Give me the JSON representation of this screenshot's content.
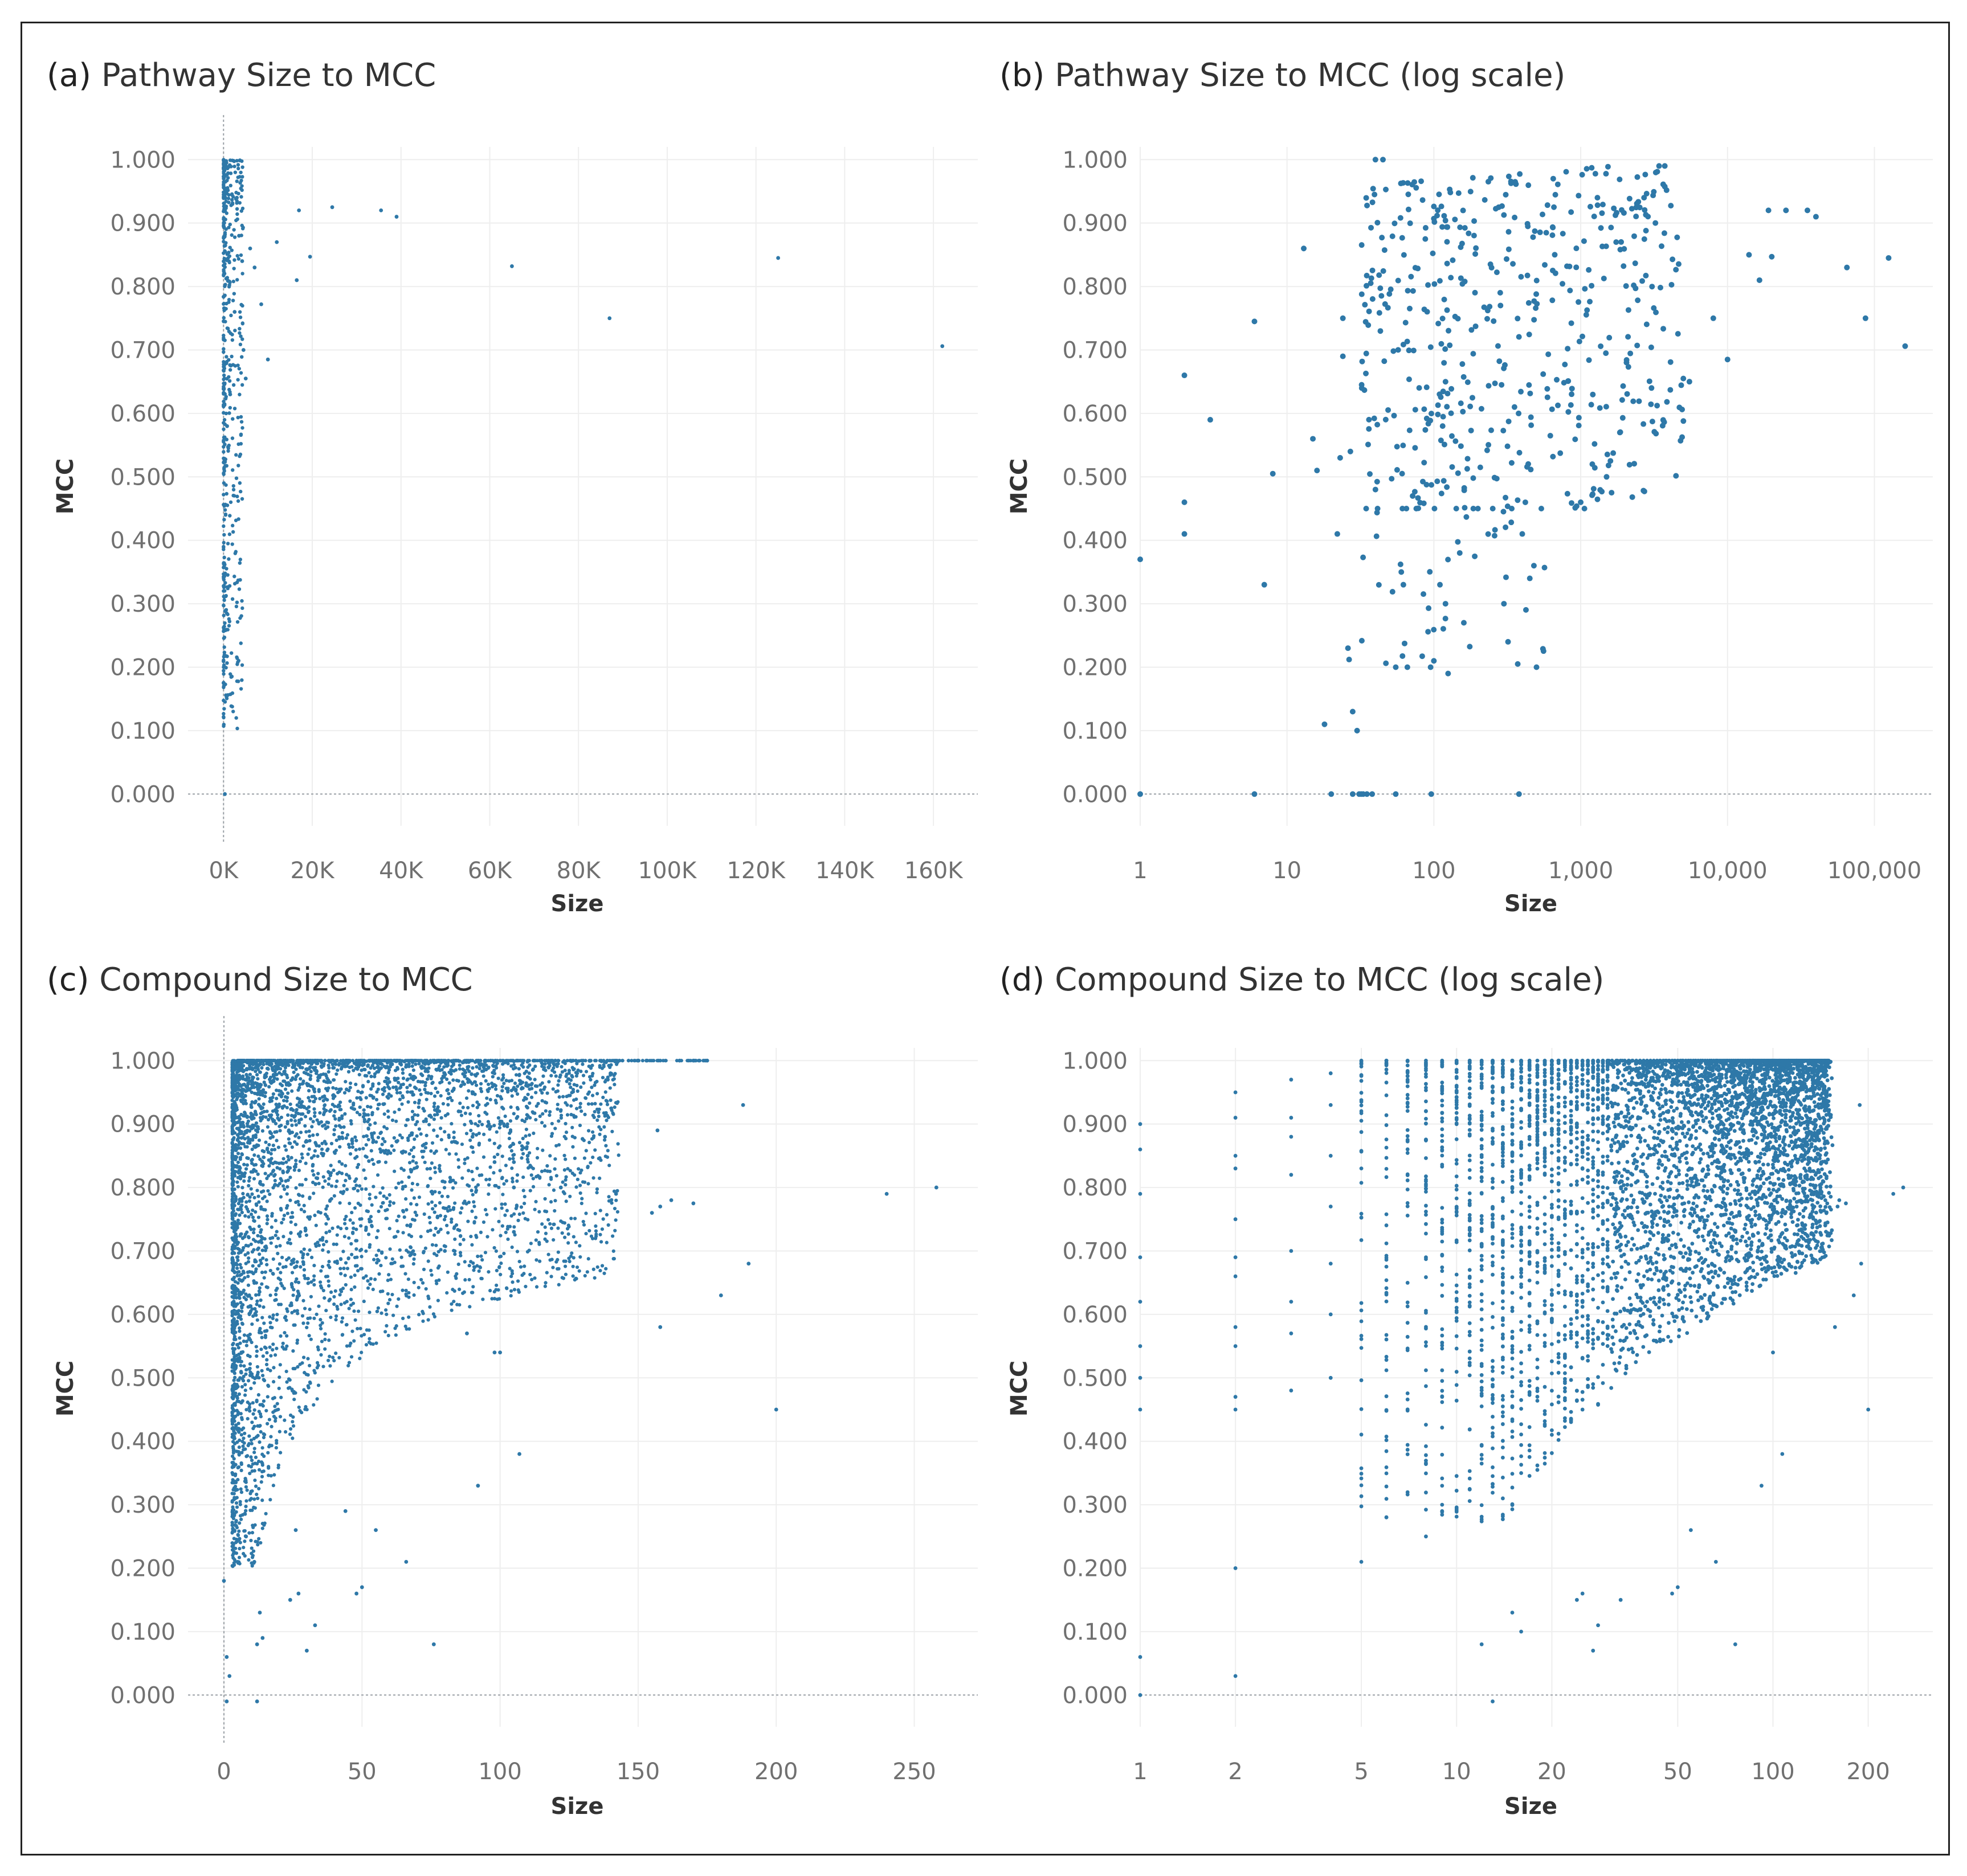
{
  "colors": {
    "point": "#2e78a8",
    "grid": "#eeeeee",
    "zero_line": "#9aa0a6",
    "tick_text": "#707070"
  },
  "chart_data": [
    {
      "id": "a",
      "type": "scatter",
      "tag": "(a)",
      "title": "Pathway Size to MCC",
      "xlabel": "Size",
      "ylabel": "MCC",
      "xscale": "linear",
      "xlim": [
        -8000,
        170000
      ],
      "ylim": [
        -0.05,
        1.02
      ],
      "xticks": [
        0,
        20000,
        40000,
        60000,
        80000,
        100000,
        120000,
        140000,
        160000
      ],
      "xticklabels": [
        "0K",
        "20K",
        "40K",
        "60K",
        "80K",
        "100K",
        "120K",
        "140K",
        "160K"
      ],
      "yticks": [
        0,
        0.1,
        0.2,
        0.3,
        0.4,
        0.5,
        0.6,
        0.7,
        0.8,
        0.9,
        1.0
      ],
      "yticklabels": [
        "0.000",
        "0.100",
        "0.200",
        "0.300",
        "0.400",
        "0.500",
        "0.600",
        "0.700",
        "0.800",
        "0.900",
        "1.000"
      ],
      "points": [
        [
          17000,
          0.92
        ],
        [
          24500,
          0.925
        ],
        [
          35500,
          0.92
        ],
        [
          39000,
          0.91
        ],
        [
          19500,
          0.847
        ],
        [
          16500,
          0.81
        ],
        [
          8500,
          0.772
        ],
        [
          10000,
          0.685
        ],
        [
          5000,
          0.655
        ],
        [
          65000,
          0.832
        ],
        [
          125000,
          0.845
        ],
        [
          87000,
          0.75
        ],
        [
          162000,
          0.706
        ],
        [
          4200,
          0.84
        ],
        [
          6000,
          0.86
        ],
        [
          3000,
          0.94
        ],
        [
          2000,
          0.93
        ],
        [
          3500,
          0.88
        ],
        [
          7000,
          0.83
        ],
        [
          12000,
          0.87
        ],
        [
          2500,
          0.76
        ],
        [
          4500,
          0.7
        ],
        [
          1500,
          0.63
        ],
        [
          800,
          0.58
        ],
        [
          300,
          0.0
        ]
      ]
    },
    {
      "id": "b",
      "type": "scatter",
      "tag": "(b)",
      "title": "Pathway Size to MCC (log scale)",
      "xlabel": "Size",
      "ylabel": "MCC",
      "xscale": "log",
      "xlim": [
        1,
        250000
      ],
      "ylim": [
        -0.05,
        1.02
      ],
      "xticks": [
        1,
        10,
        100,
        1000,
        10000,
        100000
      ],
      "xticklabels": [
        "1",
        "10",
        "100",
        "1,000",
        "10,000",
        "100,000"
      ],
      "yticks": [
        0,
        0.1,
        0.2,
        0.3,
        0.4,
        0.5,
        0.6,
        0.7,
        0.8,
        0.9,
        1.0
      ],
      "yticklabels": [
        "0.000",
        "0.100",
        "0.200",
        "0.300",
        "0.400",
        "0.500",
        "0.600",
        "0.700",
        "0.800",
        "0.900",
        "1.000"
      ],
      "points": [
        [
          1,
          0.37
        ],
        [
          1,
          0.0
        ],
        [
          2,
          0.66
        ],
        [
          2,
          0.46
        ],
        [
          2,
          0.41
        ],
        [
          3,
          0.59
        ],
        [
          6,
          0.745
        ],
        [
          6,
          0.0
        ],
        [
          7,
          0.33
        ],
        [
          8,
          0.505
        ],
        [
          13,
          0.86
        ],
        [
          15,
          0.56
        ],
        [
          16,
          0.51
        ],
        [
          18,
          0.11
        ],
        [
          20,
          0.0
        ],
        [
          22,
          0.41
        ],
        [
          23,
          0.53
        ],
        [
          24,
          0.75
        ],
        [
          24,
          0.69
        ],
        [
          26,
          0.23
        ],
        [
          27,
          0.54
        ],
        [
          28,
          0.0
        ],
        [
          28,
          0.13
        ],
        [
          30,
          0.1
        ],
        [
          31,
          0.0
        ],
        [
          32,
          0.0
        ],
        [
          33,
          0.0
        ],
        [
          35,
          0.0
        ],
        [
          38,
          0.0
        ],
        [
          40,
          0.48
        ],
        [
          40,
          1.0
        ],
        [
          45,
          1.0
        ],
        [
          55,
          0.2
        ],
        [
          55,
          0.0
        ],
        [
          60,
          0.35
        ],
        [
          62,
          0.33
        ],
        [
          66,
          0.2
        ],
        [
          95,
          0.2
        ],
        [
          96,
          0.0
        ],
        [
          100,
          0.21
        ],
        [
          110,
          0.33
        ],
        [
          120,
          0.3
        ],
        [
          125,
          0.19
        ],
        [
          150,
          0.38
        ],
        [
          160,
          0.27
        ],
        [
          300,
          0.3
        ],
        [
          320,
          0.24
        ],
        [
          380,
          0.0
        ],
        [
          400,
          0.41
        ],
        [
          450,
          0.34
        ],
        [
          480,
          0.36
        ],
        [
          500,
          0.2
        ],
        [
          1000,
          0.46
        ],
        [
          1200,
          0.52
        ],
        [
          1500,
          0.5
        ],
        [
          650,
          0.97
        ],
        [
          1300,
          0.94
        ],
        [
          2700,
          0.94
        ],
        [
          19000,
          0.92
        ],
        [
          25000,
          0.92
        ],
        [
          35000,
          0.92
        ],
        [
          40000,
          0.91
        ],
        [
          65000,
          0.83
        ],
        [
          125000,
          0.845
        ],
        [
          87000,
          0.75
        ],
        [
          162000,
          0.706
        ],
        [
          20000,
          0.847
        ],
        [
          16500,
          0.81
        ],
        [
          10000,
          0.685
        ],
        [
          5000,
          0.655
        ],
        [
          5500,
          0.65
        ],
        [
          14000,
          0.85
        ],
        [
          8000,
          0.75
        ]
      ]
    },
    {
      "id": "c",
      "type": "scatter",
      "tag": "(c)",
      "title": "Compound Size to MCC",
      "xlabel": "Size",
      "ylabel": "MCC",
      "xscale": "linear",
      "xlim": [
        -13,
        273
      ],
      "ylim": [
        -0.05,
        1.02
      ],
      "xticks": [
        0,
        50,
        100,
        150,
        200,
        250
      ],
      "xticklabels": [
        "0",
        "50",
        "100",
        "150",
        "200",
        "250"
      ],
      "yticks": [
        0,
        0.1,
        0.2,
        0.3,
        0.4,
        0.5,
        0.6,
        0.7,
        0.8,
        0.9,
        1.0
      ],
      "yticklabels": [
        "0.000",
        "0.100",
        "0.200",
        "0.300",
        "0.400",
        "0.500",
        "0.600",
        "0.700",
        "0.800",
        "0.900",
        "1.000"
      ],
      "points": [
        [
          240,
          0.79
        ],
        [
          258,
          0.8
        ],
        [
          200,
          0.45
        ],
        [
          190,
          0.68
        ],
        [
          188,
          0.93
        ],
        [
          180,
          0.63
        ],
        [
          170,
          0.775
        ],
        [
          162,
          0.78
        ],
        [
          158,
          0.77
        ],
        [
          157,
          0.89
        ],
        [
          158,
          0.58
        ],
        [
          155,
          0.76
        ],
        [
          142,
          0.79
        ],
        [
          138,
          0.88
        ],
        [
          122,
          0.8
        ],
        [
          105,
          0.8
        ],
        [
          105,
          0.73
        ],
        [
          107,
          0.38
        ],
        [
          100,
          0.54
        ],
        [
          98,
          0.54
        ],
        [
          92,
          0.33
        ],
        [
          88,
          0.57
        ],
        [
          76,
          0.08
        ],
        [
          66,
          0.21
        ],
        [
          55,
          0.26
        ],
        [
          50,
          0.17
        ],
        [
          48,
          0.16
        ],
        [
          44,
          0.29
        ],
        [
          33,
          0.11
        ],
        [
          30,
          0.07
        ],
        [
          27,
          0.16
        ],
        [
          26,
          0.26
        ],
        [
          24,
          0.15
        ],
        [
          14,
          0.09
        ],
        [
          13,
          0.13
        ],
        [
          12,
          0.08
        ],
        [
          12,
          -0.01
        ],
        [
          11,
          0.21
        ],
        [
          8,
          0.25
        ],
        [
          5,
          0.21
        ],
        [
          2,
          0.03
        ],
        [
          1,
          0.06
        ],
        [
          1,
          -0.01
        ],
        [
          0,
          0.18
        ],
        [
          175,
          1.0
        ],
        [
          170,
          1.0
        ],
        [
          165,
          1.0
        ],
        [
          150,
          1.0
        ],
        [
          153,
          1.0
        ],
        [
          140,
          0.98
        ],
        [
          139,
          0.97
        ],
        [
          120,
          1.0
        ],
        [
          115,
          1.0
        ],
        [
          110,
          0.87
        ],
        [
          110,
          0.85
        ],
        [
          105,
          0.84
        ],
        [
          98,
          0.84
        ],
        [
          100,
          0.9
        ],
        [
          90,
          0.88
        ],
        [
          85,
          0.92
        ],
        [
          80,
          0.7
        ]
      ]
    },
    {
      "id": "d",
      "type": "scatter",
      "tag": "(d)",
      "title": "Compound Size to MCC (log scale)",
      "xlabel": "Size",
      "ylabel": "MCC",
      "xscale": "log",
      "xlim": [
        1,
        320
      ],
      "ylim": [
        -0.05,
        1.02
      ],
      "xticks": [
        1,
        2,
        5,
        10,
        20,
        50,
        100,
        200
      ],
      "xticklabels": [
        "1",
        "2",
        "5",
        "10",
        "20",
        "50",
        "100",
        "200"
      ],
      "yticks": [
        0,
        0.1,
        0.2,
        0.3,
        0.4,
        0.5,
        0.6,
        0.7,
        0.8,
        0.9,
        1.0
      ],
      "yticklabels": [
        "0.000",
        "0.100",
        "0.200",
        "0.300",
        "0.400",
        "0.500",
        "0.600",
        "0.700",
        "0.800",
        "0.900",
        "1.000"
      ],
      "points": [
        [
          1,
          0.9
        ],
        [
          1,
          0.86
        ],
        [
          1,
          0.79
        ],
        [
          1,
          0.69
        ],
        [
          1,
          0.62
        ],
        [
          1,
          0.55
        ],
        [
          1,
          0.5
        ],
        [
          1,
          0.45
        ],
        [
          1,
          0.06
        ],
        [
          1,
          0.0
        ],
        [
          2,
          0.95
        ],
        [
          2,
          0.91
        ],
        [
          2,
          0.85
        ],
        [
          2,
          0.83
        ],
        [
          2,
          0.75
        ],
        [
          2,
          0.69
        ],
        [
          2,
          0.66
        ],
        [
          2,
          0.58
        ],
        [
          2,
          0.55
        ],
        [
          2,
          0.47
        ],
        [
          2,
          0.45
        ],
        [
          2,
          0.2
        ],
        [
          2,
          0.03
        ],
        [
          3,
          0.97
        ],
        [
          3,
          0.91
        ],
        [
          3,
          0.88
        ],
        [
          3,
          0.82
        ],
        [
          3,
          0.7
        ],
        [
          3,
          0.62
        ],
        [
          3,
          0.57
        ],
        [
          3,
          0.48
        ],
        [
          4,
          0.98
        ],
        [
          4,
          0.93
        ],
        [
          4,
          0.85
        ],
        [
          4,
          0.77
        ],
        [
          4,
          0.68
        ],
        [
          4,
          0.6
        ],
        [
          4,
          0.5
        ],
        [
          5,
          0.21
        ],
        [
          6,
          0.28
        ],
        [
          8,
          0.25
        ],
        [
          9,
          0.3
        ],
        [
          12,
          0.08
        ],
        [
          13,
          -0.01
        ],
        [
          14,
          0.31
        ],
        [
          15,
          0.13
        ],
        [
          16,
          0.1
        ],
        [
          24,
          0.15
        ],
        [
          25,
          0.16
        ],
        [
          27,
          0.07
        ],
        [
          28,
          0.11
        ],
        [
          33,
          0.15
        ],
        [
          48,
          0.16
        ],
        [
          50,
          0.17
        ],
        [
          55,
          0.26
        ],
        [
          66,
          0.21
        ],
        [
          76,
          0.08
        ],
        [
          92,
          0.33
        ],
        [
          100,
          0.54
        ],
        [
          107,
          0.38
        ],
        [
          142,
          0.79
        ],
        [
          157,
          0.58
        ],
        [
          160,
          0.77
        ],
        [
          188,
          0.93
        ],
        [
          190,
          0.68
        ],
        [
          180,
          0.63
        ],
        [
          200,
          0.45
        ],
        [
          240,
          0.79
        ],
        [
          258,
          0.8
        ],
        [
          170,
          0.775
        ],
        [
          162,
          0.78
        ],
        [
          138,
          0.88
        ]
      ]
    }
  ]
}
